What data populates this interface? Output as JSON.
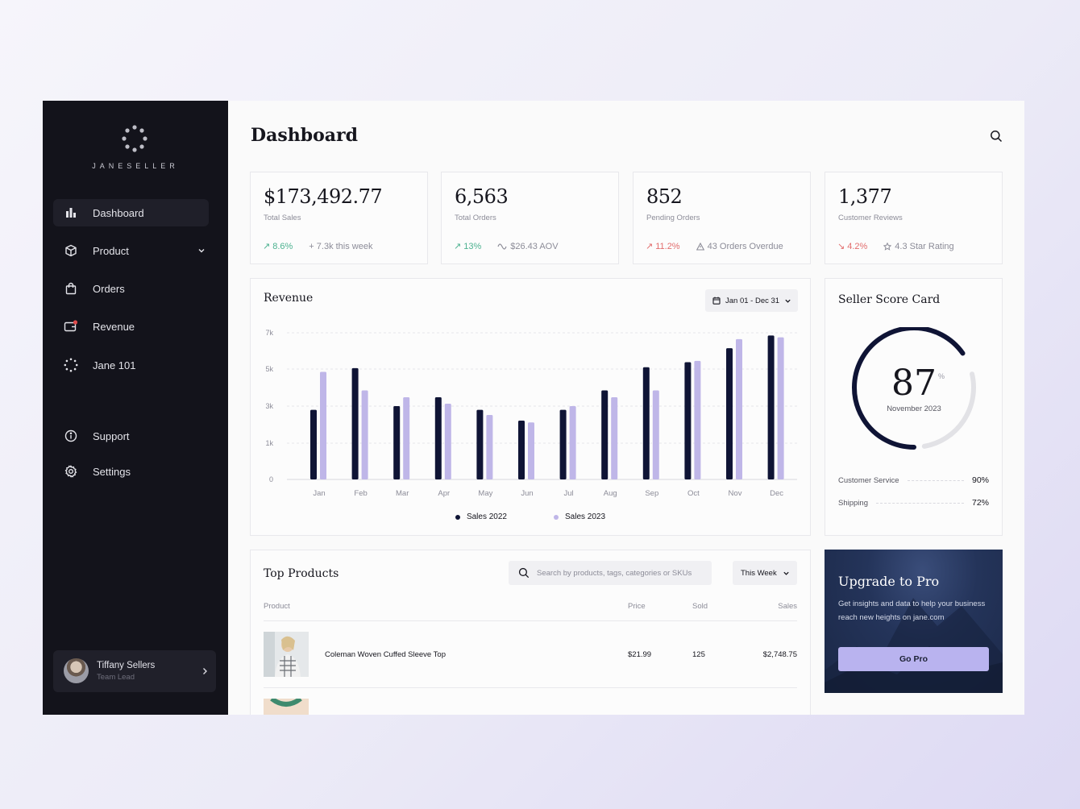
{
  "brand": {
    "name": "JANESELLER"
  },
  "sidebar": {
    "items": [
      {
        "label": "Dashboard"
      },
      {
        "label": "Product"
      },
      {
        "label": "Orders"
      },
      {
        "label": "Revenue"
      },
      {
        "label": "Jane 101"
      },
      {
        "label": "Support"
      },
      {
        "label": "Settings"
      }
    ],
    "user": {
      "name": "Tiffany Sellers",
      "role": "Team Lead"
    }
  },
  "header": {
    "title": "Dashboard"
  },
  "stats": [
    {
      "value": "$173,492.77",
      "label": "Total Sales",
      "change": "8.6%",
      "change_dir": "up",
      "sub": "+ 7.3k this week",
      "sub_icon": "none"
    },
    {
      "value": "6,563",
      "label": "Total Orders",
      "change": "13%",
      "change_dir": "up",
      "sub": "$26.43 AOV",
      "sub_icon": "wave-icon"
    },
    {
      "value": "852",
      "label": "Pending Orders",
      "change": "11.2%",
      "change_dir": "up",
      "sub": "43 Orders Overdue",
      "sub_icon": "warning-icon"
    },
    {
      "value": "1,377",
      "label": "Customer Reviews",
      "change": "4.2%",
      "change_dir": "down",
      "sub": "4.3 Star Rating",
      "sub_icon": "star-icon"
    }
  ],
  "revenue": {
    "title": "Revenue",
    "date_range": "Jan 01 - Dec 31"
  },
  "chart_data": {
    "type": "bar",
    "categories": [
      "Jan",
      "Feb",
      "Mar",
      "Apr",
      "May",
      "Jun",
      "Jul",
      "Aug",
      "Sep",
      "Oct",
      "Nov",
      "Dec"
    ],
    "series": [
      {
        "name": "Sales 2022",
        "values": [
          2800,
          5050,
          3000,
          3480,
          2800,
          2220,
          2800,
          3850,
          5100,
          5380,
          6150,
          6850
        ]
      },
      {
        "name": "Sales 2023",
        "values": [
          4850,
          3850,
          3480,
          3130,
          2520,
          2120,
          3000,
          3480,
          3850,
          5450,
          6650,
          6750
        ]
      }
    ],
    "ytick_labels": [
      "0",
      "1k",
      "3k",
      "5k",
      "7k"
    ],
    "ylim": [
      0,
      7000
    ],
    "grid": true,
    "legend": "bottom",
    "colors": [
      "#0f1435",
      "#bfb6e8"
    ]
  },
  "score_card": {
    "title": "Seller Score Card",
    "score": "87",
    "score_value": 87,
    "unit": "%",
    "month": "November 2023",
    "rows": [
      {
        "label": "Customer Service",
        "value": "90%"
      },
      {
        "label": "Shipping",
        "value": "72%"
      }
    ]
  },
  "top_products": {
    "title": "Top Products",
    "search_placeholder": "Search by products, tags, categories or SKUs",
    "period": "This Week",
    "columns": [
      "Product",
      "Price",
      "Sold",
      "Sales"
    ],
    "rows": [
      {
        "name": "Coleman Woven Cuffed Sleeve Top",
        "price": "$21.99",
        "sold": "125",
        "sales": "$2,748.75"
      }
    ]
  },
  "upgrade": {
    "title": "Upgrade to Pro",
    "text": "Get insights and data to help your business reach new heights on jane.com",
    "button": "Go Pro"
  }
}
